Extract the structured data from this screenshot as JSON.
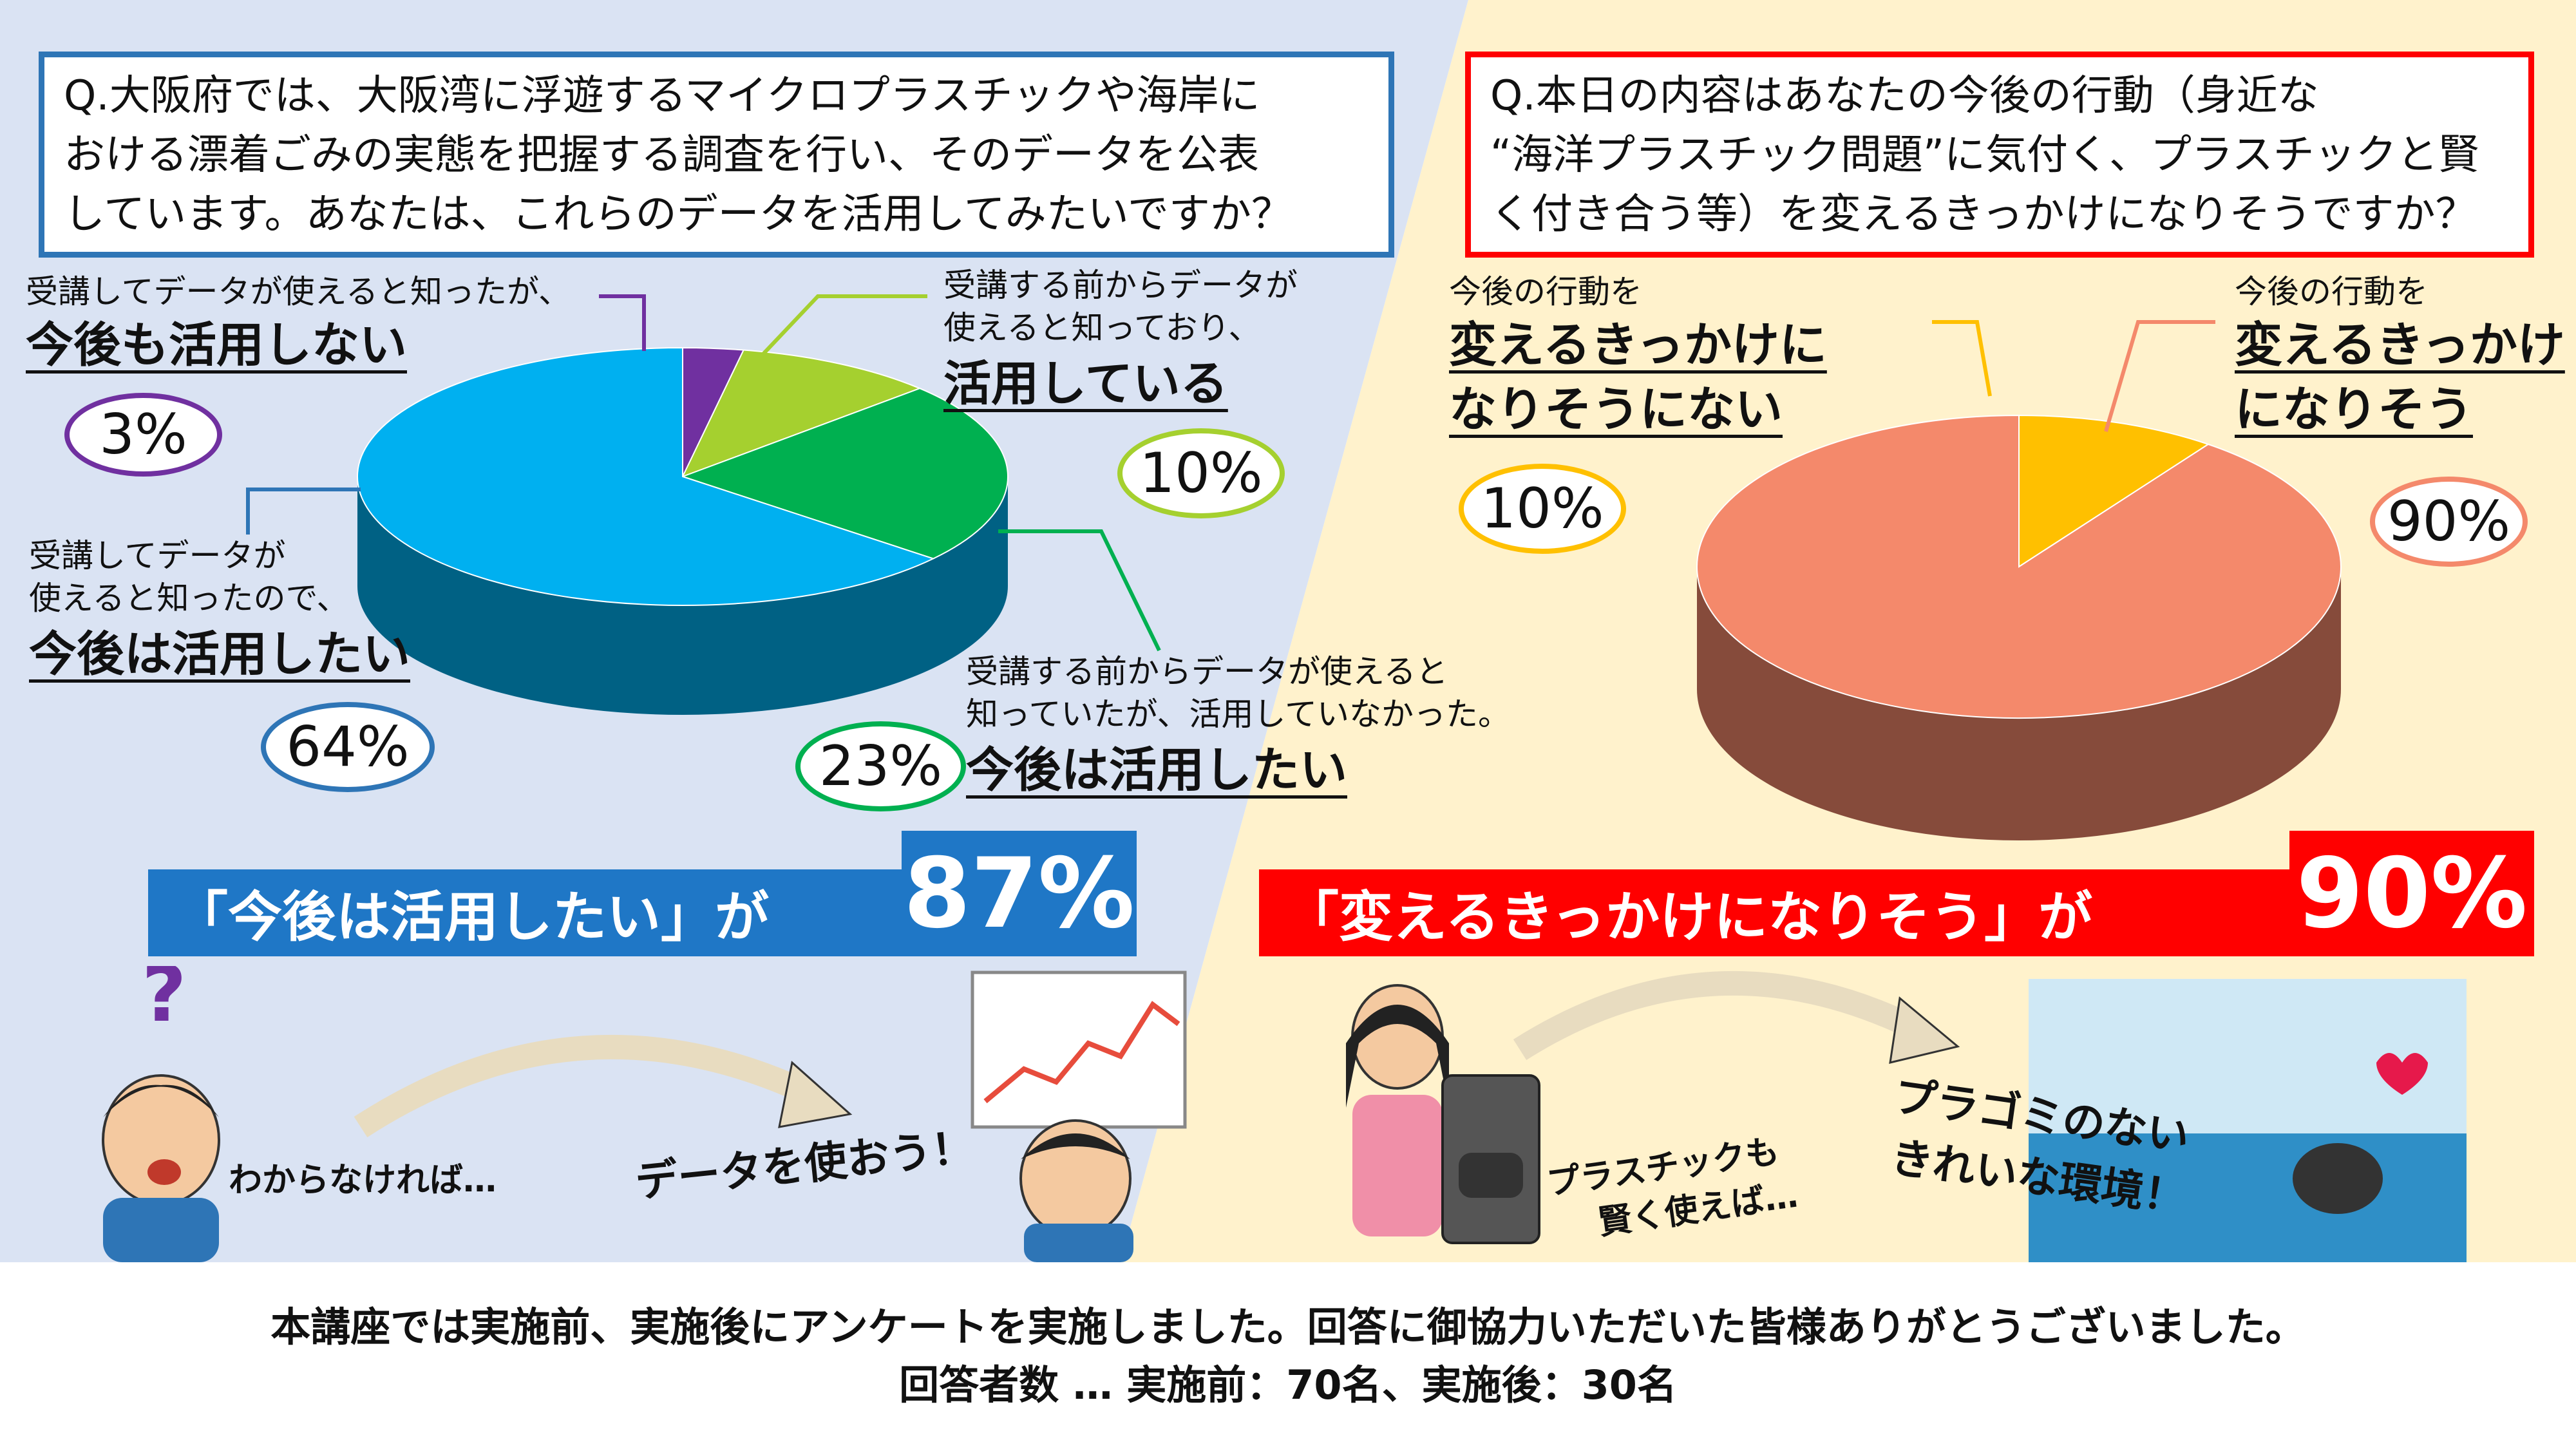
{
  "colors": {
    "left_bg": "#dae3f3",
    "right_bg": "#fff2cc",
    "blue_box": "#2e75b6",
    "red_box": "#ff0000",
    "blue_banner": "#1f77c6",
    "red_banner": "#ff0000"
  },
  "left": {
    "question": [
      "Q.大阪府では、大阪湾に浮遊するマイクロプラスチックや海岸に",
      "おける漂着ごみの実態を把握する調査を行い、そのデータを公表",
      "しています。あなたは、これらのデータを活用してみたいですか？"
    ],
    "labels": {
      "purple": {
        "small": "受講してデータが使えると知ったが、",
        "big": "今後も活用しない",
        "pct": "3%"
      },
      "lime": {
        "small1": "受講する前からデータが",
        "small2": "使えると知っており、",
        "big": "活用している",
        "pct": "10%"
      },
      "blue": {
        "small1": "受講してデータが",
        "small2": "使えると知ったので、",
        "big": "今後は活用したい",
        "pct": "64%"
      },
      "green": {
        "small1": "受講する前からデータが使えると",
        "small2": "知っていたが、活用していなかった。",
        "big": "今後は活用したい",
        "pct": "23%"
      }
    },
    "banner_text": "「今後は活用したい」が",
    "banner_value": "87%",
    "caption1": "わからなければ…",
    "caption2": "データを使おう！"
  },
  "right": {
    "question": [
      "Q.本日の内容はあなたの今後の行動（身近な",
      "“海洋プラスチック問題”に気付く、プラスチックと賢",
      "く付き合う等）を変えるきっかけになりそうですか？"
    ],
    "labels": {
      "no": {
        "small": "今後の行動を",
        "big1": "変えるきっかけに",
        "big2": "なりそうにない",
        "pct": "10%"
      },
      "yes": {
        "small": "今後の行動を",
        "big1": "変えるきっかけ",
        "big2": "になりそう",
        "pct": "90%"
      }
    },
    "banner_text": "「変えるきっかけになりそう」が",
    "banner_value": "90%",
    "caption1a": "プラスチックも",
    "caption1b": "賢く使えば…",
    "caption2a": "プラゴミのない",
    "caption2b": "きれいな環境！"
  },
  "footer": {
    "line1": "本講座では実施前、実施後にアンケートを実施しました。回答に御協力いただいた皆様ありがとうございました。",
    "line2": "回答者数 … 実施前：70名、実施後：30名"
  },
  "chart_data": [
    {
      "type": "pie",
      "title": "",
      "categories": [
        "受講してデータが使えると知ったが、今後も活用しない",
        "受講する前からデータが使えると知っており、活用している",
        "受講する前からデータが使えると知っていたが、活用していなかった。今後は活用したい",
        "受講してデータが使えると知ったので、今後は活用したい"
      ],
      "values": [
        3,
        10,
        23,
        64
      ],
      "colors": [
        "#7030a0",
        "#a5d02f",
        "#00b050",
        "#00b0f0"
      ]
    },
    {
      "type": "pie",
      "title": "",
      "categories": [
        "今後の行動を変えるきっかけになりそうにない",
        "今後の行動を変えるきっかけになりそう"
      ],
      "values": [
        10,
        90
      ],
      "colors": [
        "#ffc000",
        "#f4896b"
      ]
    }
  ]
}
